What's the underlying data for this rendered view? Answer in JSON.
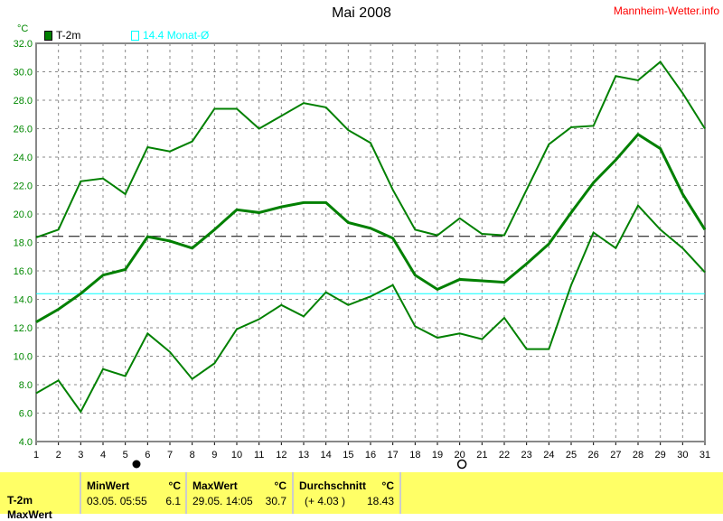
{
  "title": "Mai 2008",
  "brand": "Mannheim-Wetter.info",
  "unit": "°C",
  "legend": [
    {
      "label": "T-2m",
      "color": "#008000"
    },
    {
      "label": "14.4 Monat-Ø",
      "color": "#00ffff"
    }
  ],
  "moon": {
    "new_moon_label": "●",
    "full_moon_label": "○"
  },
  "chart_data": {
    "type": "line",
    "title": "Mai 2008",
    "ylabel": "°C",
    "ylim": [
      4,
      32
    ],
    "yticks": [
      "4.0",
      "6.0",
      "8.0",
      "10.0",
      "12.0",
      "14.0",
      "16.0",
      "18.0",
      "20.0",
      "22.0",
      "24.0",
      "26.0",
      "28.0",
      "30.0",
      "32.0"
    ],
    "x": [
      1,
      2,
      3,
      4,
      5,
      6,
      7,
      8,
      9,
      10,
      11,
      12,
      13,
      14,
      15,
      16,
      17,
      18,
      19,
      20,
      21,
      22,
      23,
      24,
      25,
      26,
      27,
      28,
      29,
      30,
      31
    ],
    "grid": true,
    "series": [
      {
        "role": "max",
        "values": [
          18.35,
          18.9,
          22.3,
          22.5,
          21.4,
          24.7,
          24.4,
          25.1,
          27.4,
          27.4,
          26.0,
          26.9,
          27.8,
          27.5,
          25.9,
          25.0,
          21.7,
          18.9,
          18.5,
          19.7,
          18.6,
          18.5,
          21.7,
          24.9,
          26.1,
          26.2,
          29.7,
          29.4,
          30.7,
          28.5,
          26.0
        ]
      },
      {
        "role": "mean",
        "values": [
          12.4,
          13.3,
          14.4,
          15.7,
          16.1,
          18.4,
          18.1,
          17.6,
          18.9,
          20.3,
          20.1,
          20.5,
          20.8,
          20.8,
          19.4,
          19.0,
          18.3,
          15.7,
          14.7,
          15.4,
          15.3,
          15.2,
          16.5,
          17.9,
          20.1,
          22.2,
          23.8,
          25.6,
          24.6,
          21.4,
          18.9
        ]
      },
      {
        "role": "min",
        "values": [
          7.4,
          8.3,
          6.1,
          9.1,
          8.6,
          11.6,
          10.3,
          8.4,
          9.5,
          11.9,
          12.6,
          13.6,
          12.8,
          14.5,
          13.6,
          14.2,
          15.0,
          12.1,
          11.3,
          11.6,
          11.2,
          12.7,
          10.5,
          10.5,
          15.0,
          18.7,
          17.6,
          20.6,
          18.9,
          17.6,
          15.9
        ]
      }
    ],
    "reference_lines": [
      {
        "value": 18.43,
        "style": "dashed",
        "color": "#000000"
      },
      {
        "value": 14.4,
        "color": "#00ffff"
      }
    ],
    "new_moon_day": 5.5,
    "full_moon_day": 20.1
  },
  "stats": {
    "row_label": "T-2m",
    "row_label2": "MaxWert",
    "min": {
      "header": "MinWert",
      "unit": "°C",
      "date": "03.05.  05:55",
      "value": "6.1"
    },
    "max": {
      "header": "MaxWert",
      "unit": "°C",
      "date": "29.05.  14:05",
      "value": "30.7"
    },
    "avg": {
      "header": "Durchschnitt",
      "unit": "°C",
      "diff": "(+ 4.03 )",
      "value": "18.43"
    }
  }
}
